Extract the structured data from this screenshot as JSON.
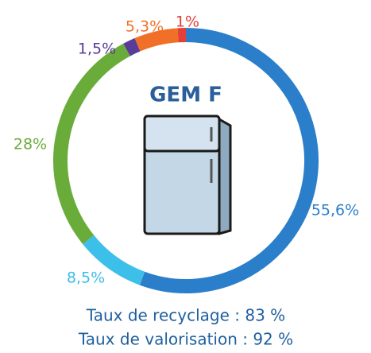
{
  "chart_data": {
    "type": "donut",
    "title": "GEM F",
    "categories": [
      null,
      null,
      null,
      null,
      null,
      null
    ],
    "values": [
      55.6,
      8.5,
      28,
      1.5,
      5.3,
      1
    ],
    "value_labels": [
      "55,6%",
      "8,5%",
      "28%",
      "1,5%",
      "5,3%",
      "1%"
    ],
    "colors": [
      "#2b7fca",
      "#3cbfe8",
      "#6aac3a",
      "#5a3b98",
      "#f07027",
      "#e3403a"
    ],
    "annotations": [
      "Taux de recyclage : 83 %",
      "Taux de valorisation : 92 %"
    ]
  }
}
